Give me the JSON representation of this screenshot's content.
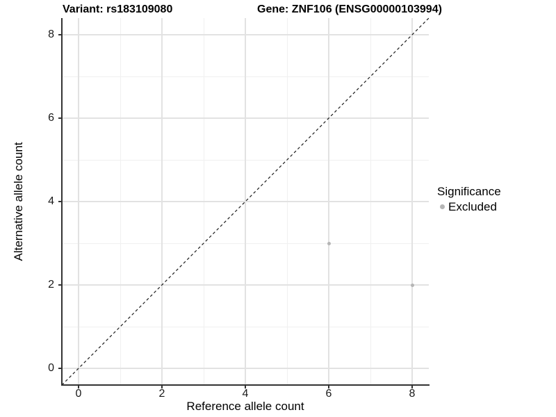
{
  "header": {
    "variant_title": "Variant: rs183109080",
    "gene_title": "Gene: ZNF106 (ENSG00000103994)"
  },
  "legend": {
    "title": "Significance",
    "items": [
      {
        "label": "Excluded",
        "color": "#b5b5b5"
      }
    ]
  },
  "colors": {
    "background": "#ffffff",
    "major_grid": "#e2e2e2",
    "minor_grid": "#f0f0f0",
    "axis_line": "#333333",
    "tick_mark": "#333333",
    "tick_label": "#1a1a1a",
    "dashed_line": "#1a1a1a",
    "point": "#b5b5b5"
  },
  "chart_data": {
    "type": "scatter",
    "title": "Variant: rs183109080 / Gene: ZNF106 (ENSG00000103994)",
    "xlabel": "Reference allele count",
    "ylabel": "Alternative allele count",
    "xlim": [
      -0.4,
      8.4
    ],
    "ylim": [
      -0.4,
      8.4
    ],
    "x_ticks": [
      0,
      2,
      4,
      6,
      8
    ],
    "y_ticks": [
      0,
      2,
      4,
      6,
      8
    ],
    "x_minor_ticks": [
      1,
      3,
      5,
      7
    ],
    "y_minor_ticks": [
      1,
      3,
      5,
      7
    ],
    "grid": "major+minor",
    "legend_position": "right",
    "series": [
      {
        "name": "Excluded",
        "color": "#b5b5b5",
        "points": [
          {
            "x": 6,
            "y": 3
          },
          {
            "x": 8,
            "y": 2
          }
        ]
      }
    ],
    "reference_line": {
      "type": "identity y=x",
      "style": "dashed",
      "color": "#1a1a1a"
    }
  }
}
